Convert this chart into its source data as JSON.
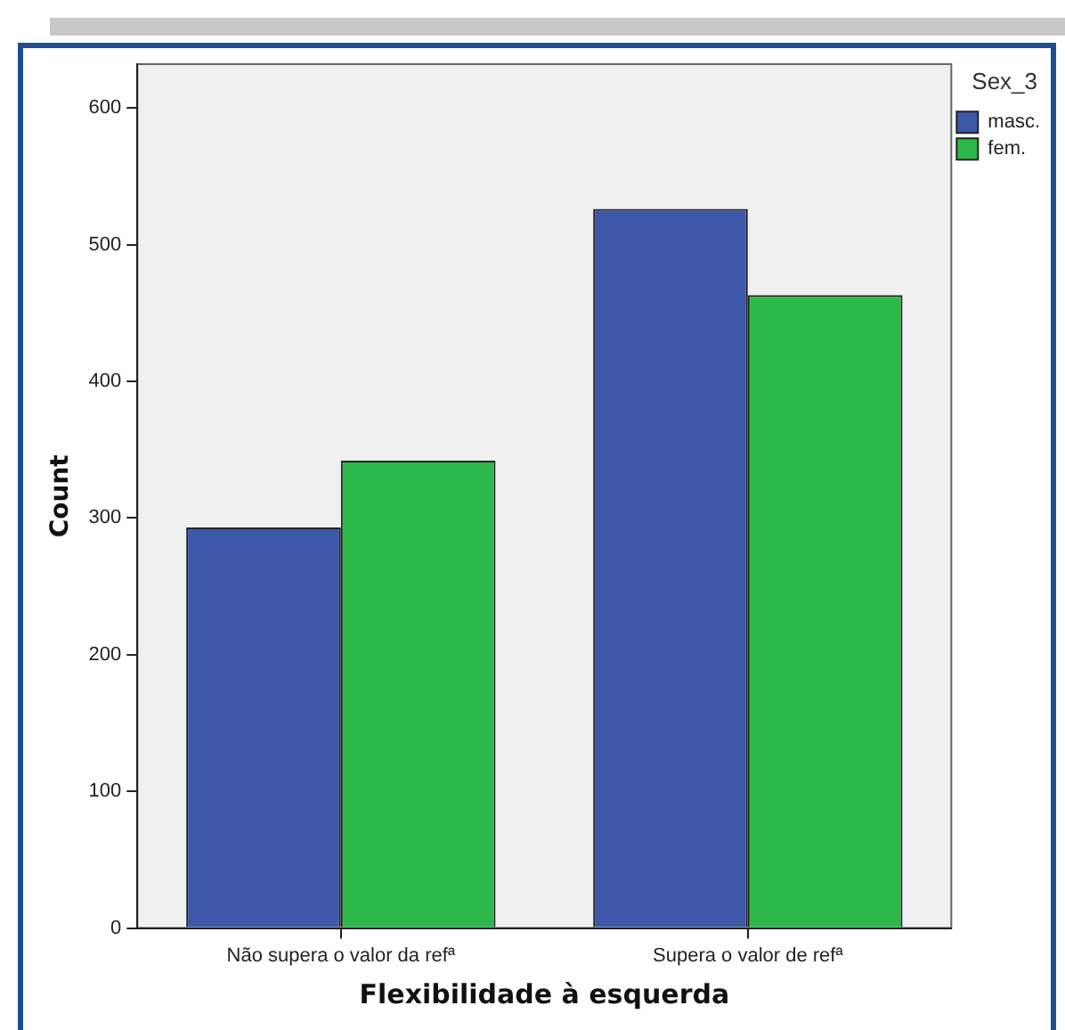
{
  "chart_data": {
    "type": "bar",
    "xlabel": "Flexibilidade à esquerda",
    "ylabel": "Count",
    "legend_title": "Sex_3",
    "categories": [
      "Não supera o valor da refª",
      "Supera o valor de refª"
    ],
    "series": [
      {
        "name": "masc.",
        "color": "#3d57a9",
        "values": [
          293,
          526
        ]
      },
      {
        "name": "fem.",
        "color": "#2db84b",
        "values": [
          342,
          463
        ]
      }
    ],
    "ylim": [
      0,
      632
    ],
    "yticks": [
      0,
      100,
      200,
      300,
      400,
      500,
      600
    ],
    "grid": false,
    "legend": "top right"
  }
}
